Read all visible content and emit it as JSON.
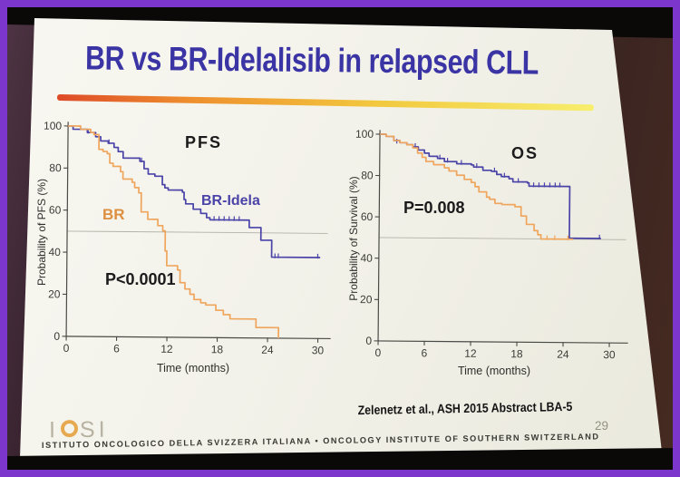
{
  "colors": {
    "frame_purple": "#7c36cc",
    "title_blue": "#3b34a4",
    "curve_blue": "#4a43a8",
    "curve_orange": "#efa55c",
    "br_label_orange": "#dd8f3f",
    "accent_bar_start": "#de4a28",
    "accent_bar_end": "#f7ee6d",
    "axis_gray": "#4a4a46",
    "reference_line_gray": "#b3b2a8"
  },
  "slide": {
    "title": "BR vs BR-Idelalisib in relapsed CLL",
    "citation": "Zelenetz et al., ASH 2015 Abstract LBA-5",
    "page_number": "29",
    "logo": {
      "i1": "I",
      "s": "S",
      "i2": "I"
    },
    "footer": "ISTITUTO ONCOLOGICO DELLA SVIZZERA ITALIANA  •  ONCOLOGY INSTITUTE OF SOUTHERN SWITZERLAND"
  },
  "chart_data": [
    {
      "type": "line",
      "subtype": "kaplan_meier_step",
      "title": "PFS",
      "xlabel": "Time (months)",
      "ylabel": "Probability of PFS (%)",
      "annotation": "P<0.0001",
      "xlim": [
        0,
        31
      ],
      "ylim": [
        0,
        100
      ],
      "xticks": [
        0,
        6,
        12,
        18,
        24,
        30
      ],
      "yticks": [
        0,
        20,
        40,
        60,
        80,
        100
      ],
      "reference_line_y": 50,
      "grid": false,
      "legend_position": "inline-labels",
      "series": [
        {
          "name": "BR-Idela",
          "color": "#4a43a8",
          "points": [
            [
              0,
              100
            ],
            [
              0.6,
              98.5
            ],
            [
              2.3,
              97
            ],
            [
              3.3,
              95
            ],
            [
              3.9,
              93
            ],
            [
              4.8,
              92
            ],
            [
              5.5,
              90
            ],
            [
              6,
              88
            ],
            [
              6.6,
              85
            ],
            [
              8.6,
              83.5
            ],
            [
              9.1,
              80
            ],
            [
              9.6,
              77.5
            ],
            [
              10.4,
              76.5
            ],
            [
              11.3,
              72.5
            ],
            [
              11.6,
              71
            ],
            [
              12,
              70
            ],
            [
              13.7,
              69
            ],
            [
              13.9,
              65.5
            ],
            [
              14.1,
              63.5
            ],
            [
              15,
              61
            ],
            [
              15.9,
              59
            ],
            [
              16.6,
              57
            ],
            [
              17,
              56
            ],
            [
              21.5,
              56
            ],
            [
              21.7,
              52.5
            ],
            [
              22.9,
              52.5
            ],
            [
              23.1,
              46.5
            ],
            [
              24.2,
              46.5
            ],
            [
              24.4,
              38.5
            ],
            [
              30.2,
              38.5
            ]
          ],
          "censor_marks": [
            [
              2.4,
              97
            ],
            [
              4.9,
              92
            ],
            [
              8.8,
              83.5
            ],
            [
              17.5,
              56
            ],
            [
              18.1,
              56
            ],
            [
              18.7,
              56
            ],
            [
              19.3,
              56
            ],
            [
              19.9,
              56
            ],
            [
              20.5,
              56
            ],
            [
              24.8,
              38.5
            ],
            [
              25.2,
              38.5
            ],
            [
              29.9,
              38.5
            ]
          ]
        },
        {
          "name": "BR",
          "color": "#efa55c",
          "points": [
            [
              0,
              100
            ],
            [
              1.5,
              98.5
            ],
            [
              2.7,
              97
            ],
            [
              3.1,
              96
            ],
            [
              3.7,
              89
            ],
            [
              4.2,
              88
            ],
            [
              4.7,
              87
            ],
            [
              5,
              82.5
            ],
            [
              5.4,
              81
            ],
            [
              6.3,
              78.5
            ],
            [
              6.6,
              75
            ],
            [
              7.7,
              73.5
            ],
            [
              8,
              71
            ],
            [
              8.5,
              68.5
            ],
            [
              8.8,
              59.5
            ],
            [
              9.6,
              56
            ],
            [
              10.8,
              53
            ],
            [
              11.4,
              50.5
            ],
            [
              11.7,
              41
            ],
            [
              11.9,
              34
            ],
            [
              13.2,
              32
            ],
            [
              13.5,
              26
            ],
            [
              14.1,
              23
            ],
            [
              14.7,
              20.5
            ],
            [
              15.2,
              18
            ],
            [
              16,
              16.5
            ],
            [
              16.6,
              15.5
            ],
            [
              17.8,
              13
            ],
            [
              18.7,
              11
            ],
            [
              19.5,
              9
            ],
            [
              22.3,
              9
            ],
            [
              22.6,
              5
            ],
            [
              25,
              5
            ],
            [
              25.3,
              0
            ]
          ],
          "censor_marks": []
        }
      ]
    },
    {
      "type": "line",
      "subtype": "kaplan_meier_step",
      "title": "OS",
      "xlabel": "Time (months)",
      "ylabel": "Probability of Survival (%)",
      "annotation": "P=0.008",
      "xlim": [
        0,
        31
      ],
      "ylim": [
        0,
        100
      ],
      "xticks": [
        0,
        6,
        12,
        18,
        24,
        30
      ],
      "yticks": [
        0,
        20,
        40,
        60,
        80,
        100
      ],
      "reference_line_y": 50,
      "grid": false,
      "legend_position": "none",
      "series": [
        {
          "name": "BR-Idela",
          "color": "#4a43a8",
          "points": [
            [
              0,
              100
            ],
            [
              0.8,
              99
            ],
            [
              1.8,
              97
            ],
            [
              2.6,
              96
            ],
            [
              3.5,
              95
            ],
            [
              4.3,
              94
            ],
            [
              5,
              92.5
            ],
            [
              5.8,
              91
            ],
            [
              6.4,
              89.5
            ],
            [
              7.5,
              88.5
            ],
            [
              8.4,
              87
            ],
            [
              10,
              86
            ],
            [
              11.9,
              85.5
            ],
            [
              12.2,
              84.5
            ],
            [
              13.4,
              83
            ],
            [
              14.5,
              82.5
            ],
            [
              15.2,
              81
            ],
            [
              15.8,
              80
            ],
            [
              16.8,
              79
            ],
            [
              17.3,
              77.5
            ],
            [
              19.2,
              77
            ],
            [
              19.4,
              75.5
            ],
            [
              24.5,
              75.5
            ],
            [
              24.7,
              50.5
            ],
            [
              28.8,
              50.5
            ]
          ],
          "censor_marks": [
            [
              2.2,
              96
            ],
            [
              4.6,
              94
            ],
            [
              7.8,
              88.5
            ],
            [
              8.8,
              87
            ],
            [
              10.6,
              86
            ],
            [
              12.6,
              84.5
            ],
            [
              14.9,
              82.5
            ],
            [
              16.2,
              80
            ],
            [
              18,
              77.5
            ],
            [
              20,
              75.5
            ],
            [
              20.7,
              75.5
            ],
            [
              21.4,
              75.5
            ],
            [
              22.1,
              75.5
            ],
            [
              22.8,
              75.5
            ],
            [
              23.4,
              75.5
            ],
            [
              28.6,
              50.5
            ]
          ]
        },
        {
          "name": "BR",
          "color": "#efa55c",
          "points": [
            [
              0,
              100
            ],
            [
              0.8,
              99
            ],
            [
              1.8,
              97
            ],
            [
              2.6,
              96
            ],
            [
              3.5,
              95
            ],
            [
              4.3,
              93.5
            ],
            [
              4.9,
              91
            ],
            [
              5.5,
              89
            ],
            [
              6,
              87
            ],
            [
              7,
              85.5
            ],
            [
              8.4,
              84
            ],
            [
              9,
              82.5
            ],
            [
              10,
              80.5
            ],
            [
              11,
              78.5
            ],
            [
              11.9,
              77
            ],
            [
              12.4,
              75
            ],
            [
              12.9,
              72.5
            ],
            [
              13.9,
              70
            ],
            [
              14.3,
              69
            ],
            [
              15,
              67
            ],
            [
              15.9,
              66.5
            ],
            [
              17.6,
              65.5
            ],
            [
              18.4,
              61
            ],
            [
              19.1,
              57
            ],
            [
              20.1,
              54
            ],
            [
              20.6,
              52
            ],
            [
              21,
              50
            ],
            [
              25.2,
              50
            ]
          ],
          "censor_marks": [
            [
              21.8,
              50
            ],
            [
              22.8,
              50
            ],
            [
              24.5,
              50
            ]
          ]
        }
      ]
    }
  ]
}
